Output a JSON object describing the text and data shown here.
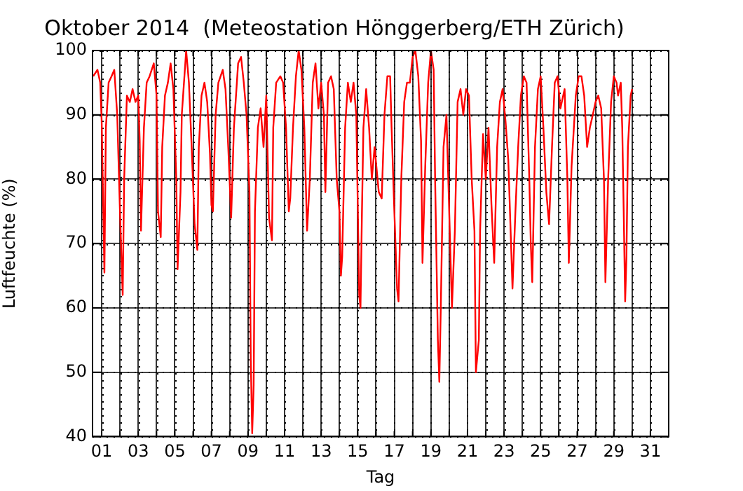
{
  "chart_data": {
    "type": "line",
    "title": "Oktober 2014  (Meteostation Hönggerberg/ETH Zürich)",
    "xlabel": "Tag",
    "ylabel": "Luftfeuchte (%)",
    "x": [
      0.54,
      0.77,
      0.92,
      1.0,
      1.15,
      1.23,
      1.38,
      1.54,
      1.69,
      1.85,
      2.0,
      2.15,
      2.23,
      2.38,
      2.54,
      2.69,
      2.85,
      3.0,
      3.08,
      3.15,
      3.31,
      3.46,
      3.62,
      3.85,
      4.0,
      4.08,
      4.23,
      4.31,
      4.46,
      4.62,
      4.77,
      4.92,
      5.08,
      5.15,
      5.31,
      5.38,
      5.62,
      5.77,
      5.92,
      6.08,
      6.23,
      6.31,
      6.46,
      6.62,
      6.77,
      6.92,
      7.0,
      7.08,
      7.23,
      7.38,
      7.62,
      7.77,
      7.92,
      8.08,
      8.23,
      8.46,
      8.62,
      8.77,
      8.92,
      9.08,
      9.15,
      9.23,
      9.31,
      9.38,
      9.54,
      9.69,
      9.85,
      10.0,
      10.15,
      10.31,
      10.38,
      10.54,
      10.77,
      10.92,
      11.08,
      11.23,
      11.31,
      11.46,
      11.62,
      11.77,
      11.92,
      12.08,
      12.23,
      12.38,
      12.54,
      12.69,
      12.85,
      13.0,
      13.15,
      13.23,
      13.38,
      13.54,
      13.69,
      13.85,
      14.0,
      14.08,
      14.15,
      14.31,
      14.46,
      14.62,
      14.77,
      14.92,
      15.08,
      15.15,
      15.23,
      15.31,
      15.46,
      15.62,
      15.77,
      15.92,
      16.15,
      16.31,
      16.46,
      16.62,
      16.77,
      16.85,
      17.0,
      17.15,
      17.23,
      17.38,
      17.54,
      17.69,
      17.85,
      18.0,
      18.15,
      18.31,
      18.46,
      18.54,
      18.69,
      18.85,
      19.0,
      19.15,
      19.23,
      19.38,
      19.46,
      19.54,
      19.69,
      19.85,
      20.0,
      20.15,
      20.31,
      20.46,
      20.62,
      20.77,
      20.92,
      21.08,
      21.23,
      21.38,
      21.46,
      21.62,
      21.69,
      21.85,
      22.0,
      22.15,
      22.31,
      22.46,
      22.62,
      22.77,
      22.92,
      23.08,
      23.23,
      23.38,
      23.46,
      23.62,
      23.77,
      23.92,
      24.08,
      24.23,
      24.38,
      24.46,
      24.54,
      24.69,
      24.85,
      25.0,
      25.15,
      25.31,
      25.46,
      25.62,
      25.77,
      25.92,
      26.08,
      26.31,
      26.46,
      26.54,
      26.69,
      26.92,
      27.08,
      27.23,
      27.38,
      27.54,
      27.69,
      27.85,
      28.0,
      28.15,
      28.31,
      28.46,
      28.54,
      28.69,
      28.85,
      29.0,
      29.15,
      29.23,
      29.38,
      29.46,
      29.54,
      29.62,
      29.69,
      29.77,
      29.92,
      30.0
    ],
    "series": [
      {
        "color": "#ff0000",
        "values": [
          96,
          97,
          95,
          89,
          65.5,
          88,
          95,
          96,
          97,
          90,
          75,
          62,
          80,
          93,
          92,
          94,
          92,
          93,
          86,
          72,
          88,
          95,
          96,
          98,
          93,
          75,
          71,
          85,
          93,
          95,
          98,
          94,
          80,
          66,
          78,
          90,
          100,
          95,
          85,
          73,
          69,
          85,
          93,
          95,
          92,
          84,
          76,
          75,
          90,
          95,
          97,
          94,
          85,
          74,
          88,
          98,
          99,
          95,
          90,
          78,
          52,
          40.5,
          48,
          75,
          88,
          91,
          85,
          93,
          74,
          70.5,
          88,
          95,
          96,
          95,
          88,
          75,
          77,
          88,
          96,
          100,
          97,
          88,
          72,
          80,
          95,
          98,
          91,
          95,
          90,
          78,
          95,
          96,
          94,
          80,
          75,
          65,
          68,
          88,
          95,
          92,
          95,
          90,
          62,
          60,
          75,
          88,
          94,
          88,
          80,
          85,
          78,
          77,
          90,
          96,
          96,
          88,
          75,
          63,
          61,
          80,
          92,
          95,
          95,
          99,
          100,
          96,
          86,
          67,
          82,
          95,
          100,
          97,
          80,
          55,
          48.5,
          60,
          85,
          90,
          75,
          60,
          72,
          92,
          94,
          90,
          94,
          93,
          80,
          72,
          50,
          55,
          72,
          87,
          80,
          88,
          76,
          67,
          85,
          92,
          94,
          89,
          83,
          70,
          63,
          75,
          85,
          93,
          96,
          95,
          80,
          70,
          64,
          85,
          94,
          96,
          88,
          78,
          73,
          85,
          95,
          96,
          91,
          94,
          80,
          67,
          82,
          93,
          96,
          96,
          93,
          85,
          88,
          90,
          92,
          93,
          91,
          80,
          64,
          80,
          92,
          96,
          95,
          93,
          95,
          88,
          75,
          61,
          68,
          85,
          93,
          94
        ]
      }
    ],
    "xlim": [
      0.5,
      32
    ],
    "xticks": [
      {
        "value": 1,
        "label": "01"
      },
      {
        "value": 2,
        "label": null
      },
      {
        "value": 3,
        "label": "03"
      },
      {
        "value": 4,
        "label": null
      },
      {
        "value": 5,
        "label": "05"
      },
      {
        "value": 6,
        "label": null
      },
      {
        "value": 7,
        "label": "07"
      },
      {
        "value": 8,
        "label": null
      },
      {
        "value": 9,
        "label": "09"
      },
      {
        "value": 10,
        "label": null
      },
      {
        "value": 11,
        "label": "11"
      },
      {
        "value": 12,
        "label": null
      },
      {
        "value": 13,
        "label": "13"
      },
      {
        "value": 14,
        "label": null
      },
      {
        "value": 15,
        "label": "15"
      },
      {
        "value": 16,
        "label": null
      },
      {
        "value": 17,
        "label": "17"
      },
      {
        "value": 18,
        "label": null
      },
      {
        "value": 19,
        "label": "19"
      },
      {
        "value": 20,
        "label": null
      },
      {
        "value": 21,
        "label": "21"
      },
      {
        "value": 22,
        "label": null
      },
      {
        "value": 23,
        "label": "23"
      },
      {
        "value": 24,
        "label": null
      },
      {
        "value": 25,
        "label": "25"
      },
      {
        "value": 26,
        "label": null
      },
      {
        "value": 27,
        "label": "27"
      },
      {
        "value": 28,
        "label": null
      },
      {
        "value": 29,
        "label": "29"
      },
      {
        "value": 30,
        "label": null
      },
      {
        "value": 31,
        "label": "31"
      }
    ],
    "ylim": [
      40,
      100
    ],
    "yticks": [
      40,
      50,
      60,
      70,
      80,
      90,
      100
    ],
    "grid": true,
    "legend": false,
    "marker": "none",
    "line_style": "solid"
  }
}
